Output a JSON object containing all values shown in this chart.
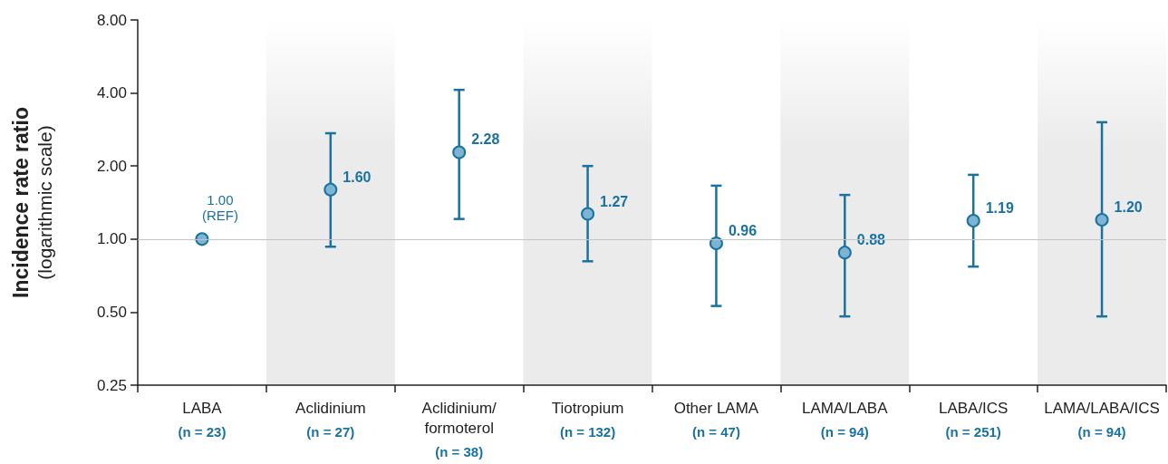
{
  "chart_data": {
    "type": "scatter",
    "ylabel": "Incidence rate ratio\n(logarithmic scale)",
    "categories": [
      "LABA\n(n = 23)",
      "Aclidinium\n(n = 27)",
      "Aclidinium/\nformoterol\n(n = 38)",
      "Tiotropium\n(n = 132)",
      "Other LAMA\n(n = 47)",
      "LAMA/LABA\n(n = 94)",
      "LABA/ICS\n(n = 251)",
      "LAMA/LABA/ICS\n(n = 94)"
    ],
    "series": [
      {
        "color": "#7db4d3",
        "values": [
          1.0,
          1.6,
          2.28,
          1.27,
          0.96,
          0.88,
          1.19,
          1.2
        ],
        "errors": [
          null,
          [
            0.93,
            2.73
          ],
          [
            1.21,
            4.12
          ],
          [
            0.81,
            2.0
          ],
          [
            0.53,
            1.66
          ],
          [
            0.48,
            1.52
          ],
          [
            0.77,
            1.84
          ],
          [
            0.48,
            3.03
          ]
        ],
        "value_labels": [
          "1.00\n(REF)",
          "1.60",
          "2.28",
          "1.27",
          "0.96",
          "0.88",
          "1.19",
          "1.20"
        ]
      }
    ],
    "log": "y",
    "ylim": [
      0.25,
      8
    ],
    "yticks": [
      {
        "value": 0.25,
        "label": "0.25"
      },
      {
        "value": 0.5,
        "label": "0.50"
      },
      {
        "value": 1,
        "label": "1.00"
      },
      {
        "value": 2,
        "label": "2.00"
      },
      {
        "value": 4,
        "label": "4.00"
      },
      {
        "value": 8,
        "label": "8.00"
      }
    ],
    "grid": false,
    "marker": "circle",
    "ref_lines": [
      {
        "axis": "y",
        "value": 1,
        "color": "#c4c4c4"
      }
    ],
    "bands": [
      {
        "axis": "x",
        "from": "Aclidinium\n(n = 27)",
        "to": "Aclidinium\n(n = 27)",
        "color": "#ebebeb"
      },
      {
        "axis": "x",
        "from": "Tiotropium\n(n = 132)",
        "to": "Tiotropium\n(n = 132)",
        "color": "#ebebeb"
      },
      {
        "axis": "x",
        "from": "LAMA/LABA\n(n = 94)",
        "to": "LAMA/LABA\n(n = 94)",
        "color": "#ebebeb"
      },
      {
        "axis": "x",
        "from": "LAMA/LABA/ICS\n(n = 94)",
        "to": "LAMA/LABA/ICS\n(n = 94)",
        "color": "#ebebeb"
      }
    ]
  }
}
